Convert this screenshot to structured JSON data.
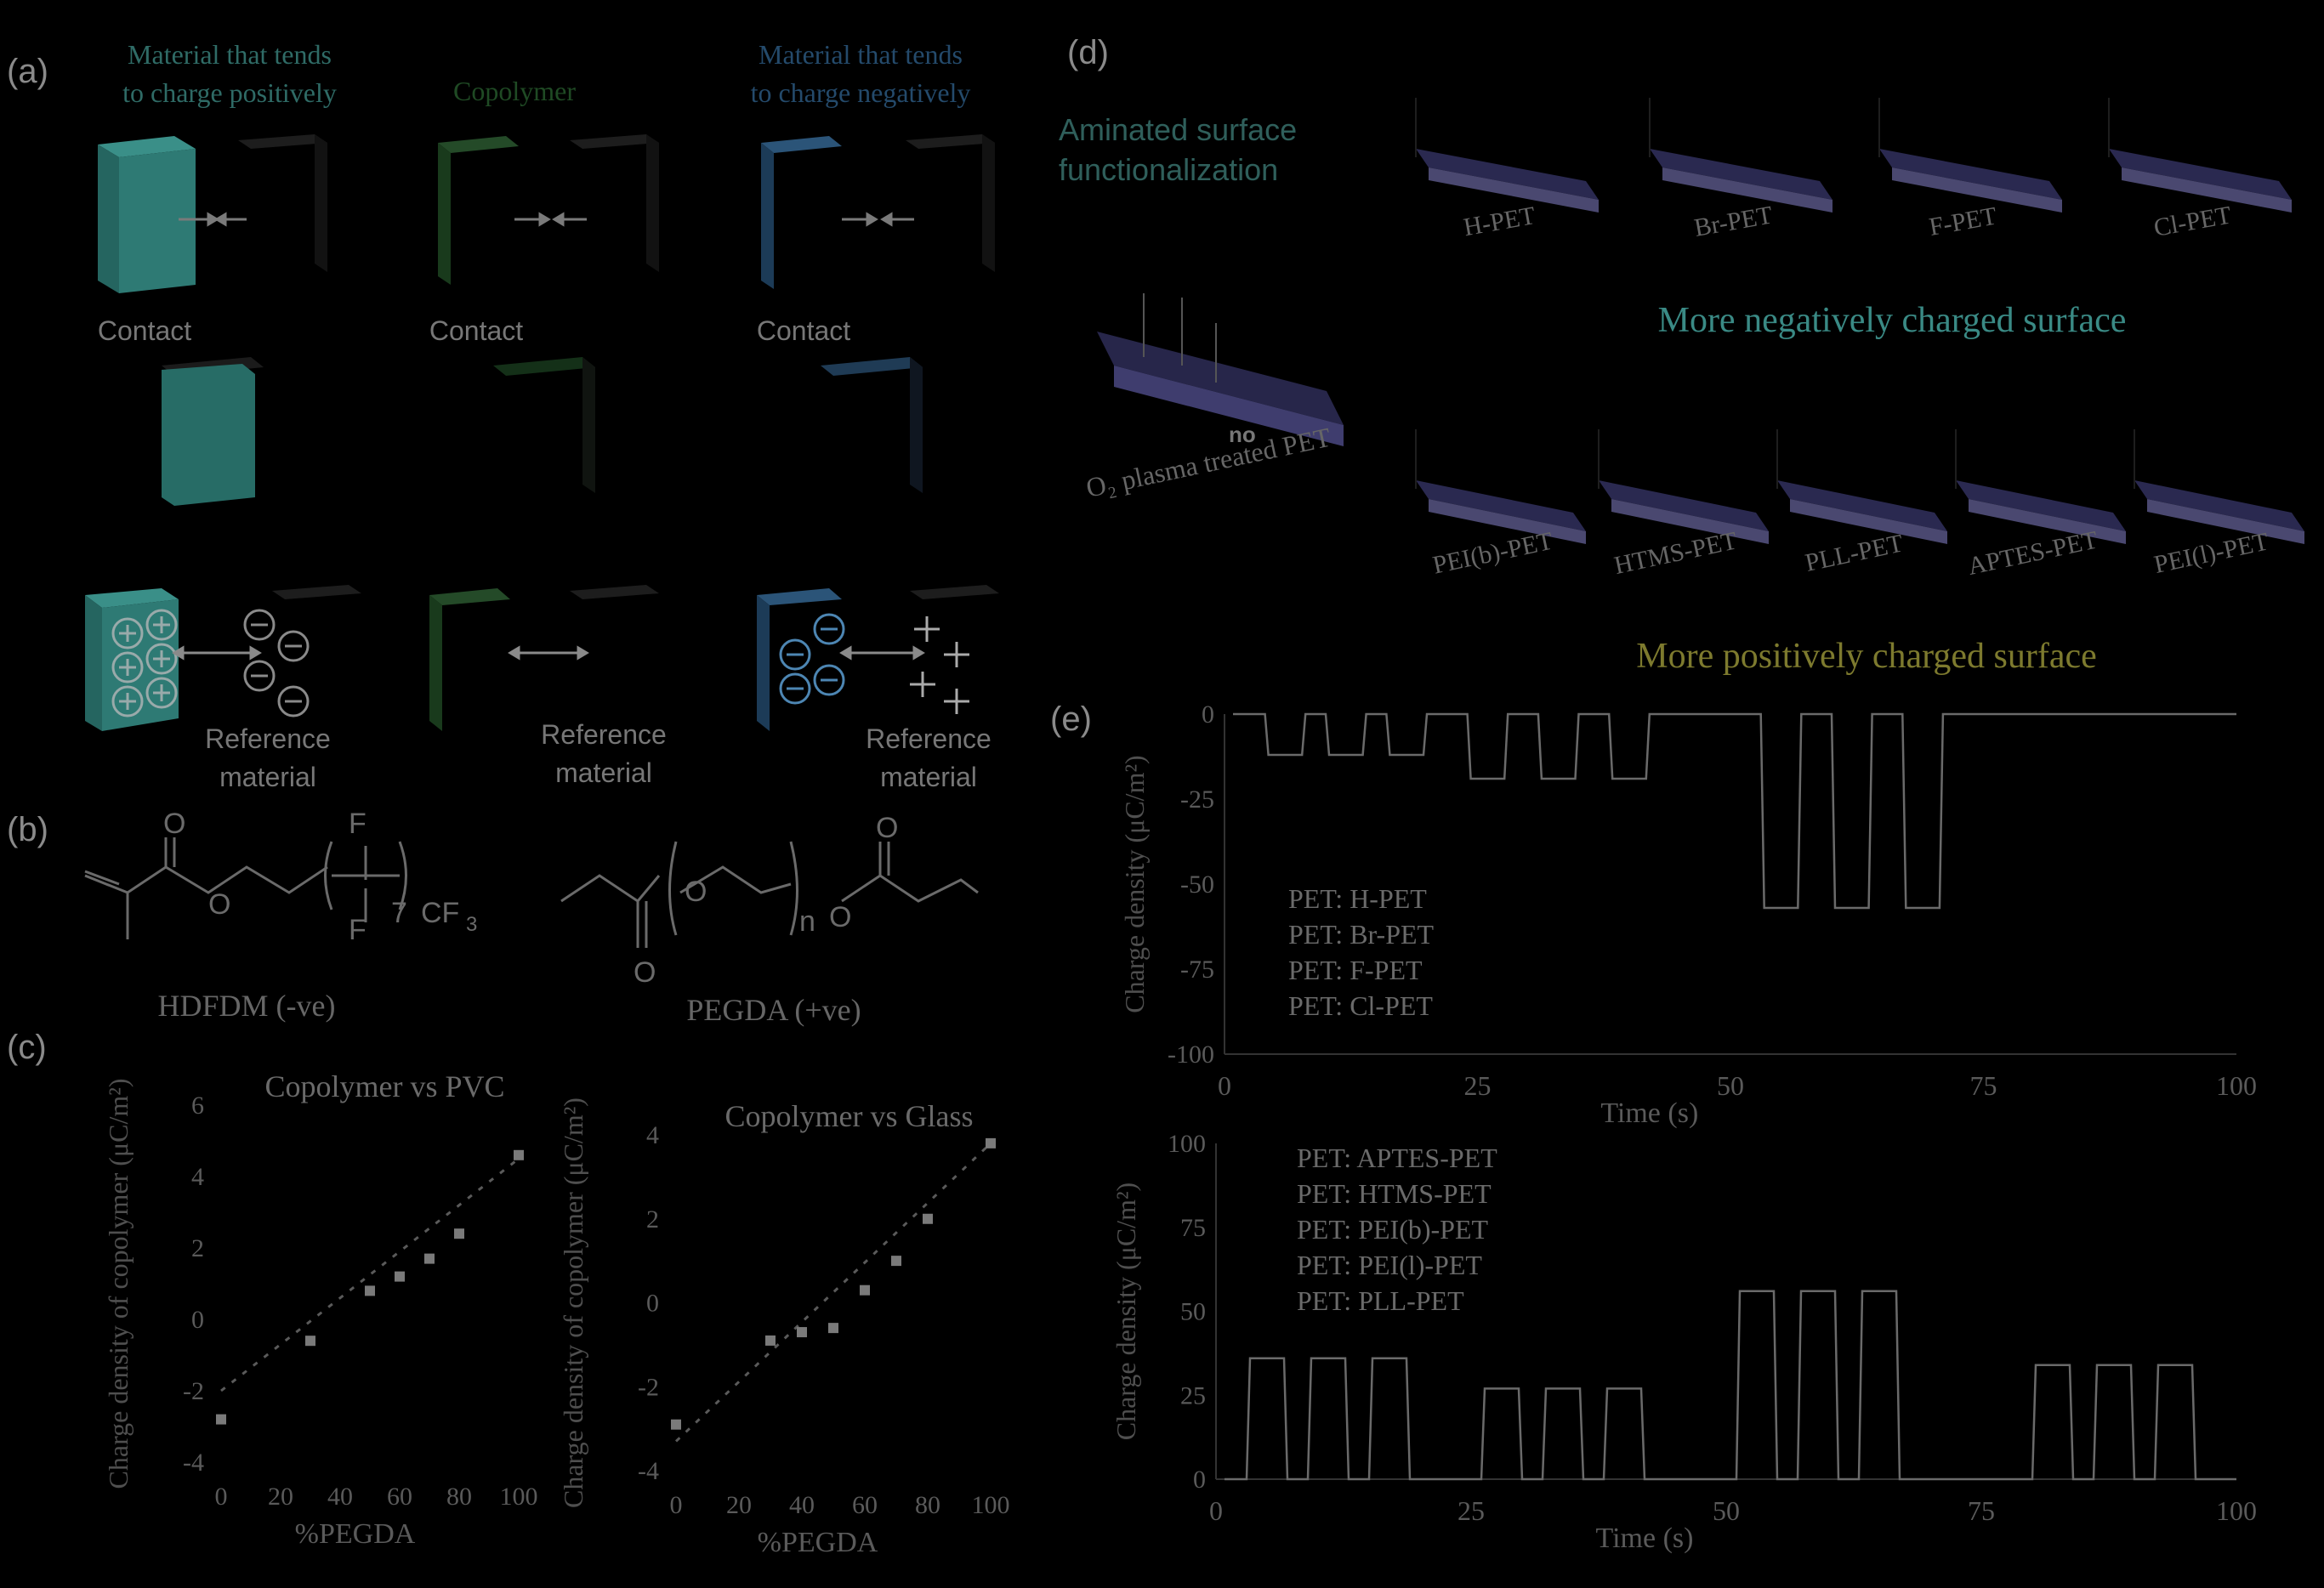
{
  "panels": {
    "a": "(a)",
    "b": "(b)",
    "c": "(c)",
    "d": "(d)",
    "e": "(e)"
  },
  "panel_a": {
    "col1_title_1": "Material that tends",
    "col1_title_2": "to charge positively",
    "col2_title": "Copolymer",
    "col3_title_1": "Material that tends",
    "col3_title_2": "to charge negatively",
    "contact": "Contact",
    "ref_1": "Reference",
    "ref_2": "material",
    "colors": {
      "positive": "#2a6f6a",
      "neutral": "#1f3a22",
      "negative": "#22415e",
      "reference": "#151515"
    }
  },
  "panel_b": {
    "left_name": "HDFDM (-ve)",
    "right_name": "PEGDA (+ve)",
    "atoms": {
      "O": "O",
      "F": "F",
      "n7": "7",
      "CF3": "CF",
      "sub3": "3",
      "n": "n"
    }
  },
  "panel_d": {
    "aminated_1": "Aminated surface",
    "aminated_2": "functionalization",
    "neg_label": "More negatively charged surface",
    "pos_label": "More positively charged surface",
    "center_label": "O₂ plasma treated PET",
    "center_mark": "no",
    "neg_films": [
      "H-PET",
      "Br-PET",
      "F-PET",
      "Cl-PET"
    ],
    "pos_films": [
      "PEI(b)-PET",
      "HTMS-PET",
      "PLL-PET",
      "APTES-PET",
      "PEI(l)-PET"
    ],
    "colors": {
      "teal": "#3a8a85",
      "yellow": "#7d7a2e",
      "film": "#4a4870"
    }
  },
  "chart_data": [
    {
      "type": "scatter",
      "panel": "c-left",
      "title": "Copolymer vs PVC",
      "xlabel": "%PEGDA",
      "ylabel": "Charge density of copolymer (μC/m²)",
      "xlim": [
        0,
        100
      ],
      "ylim": [
        -4,
        6
      ],
      "xticks": [
        "0",
        "20",
        "40",
        "60",
        "80",
        "100"
      ],
      "yticks": [
        "-4",
        "-2",
        "0",
        "2",
        "4",
        "6"
      ],
      "x": [
        0,
        30,
        50,
        60,
        70,
        80,
        100
      ],
      "y": [
        -2.8,
        -0.6,
        0.8,
        1.2,
        1.7,
        2.4,
        4.6
      ],
      "fit": [
        [
          0,
          -2.0
        ],
        [
          100,
          4.5
        ]
      ]
    },
    {
      "type": "scatter",
      "panel": "c-right",
      "title": "Copolymer vs Glass",
      "xlabel": "%PEGDA",
      "ylabel": "Charge density of copolymer (μC/m²)",
      "xlim": [
        0,
        100
      ],
      "ylim": [
        -4,
        4
      ],
      "xticks": [
        "0",
        "20",
        "40",
        "60",
        "80",
        "100"
      ],
      "yticks": [
        "-4",
        "-2",
        "0",
        "2",
        "4"
      ],
      "x": [
        0,
        30,
        40,
        50,
        60,
        70,
        80,
        100
      ],
      "y": [
        -2.9,
        -0.9,
        -0.7,
        -0.6,
        0.3,
        1.0,
        2.0,
        3.8
      ],
      "fit": [
        [
          0,
          -3.3
        ],
        [
          100,
          3.8
        ]
      ]
    },
    {
      "type": "line",
      "panel": "e-top",
      "xlabel": "Time (s)",
      "ylabel": "Charge density (μC/m²)",
      "xlim": [
        0,
        100
      ],
      "ylim": [
        -100,
        0
      ],
      "xticks": [
        "0",
        "25",
        "50",
        "75",
        "100"
      ],
      "yticks": [
        "0",
        "-25",
        "-50",
        "-75",
        "-100"
      ],
      "legend": [
        "PET: H-PET",
        "PET: Br-PET",
        "PET: F-PET",
        "PET: Cl-PET"
      ],
      "pulses": [
        {
          "start": 4,
          "end": 8,
          "value": -12
        },
        {
          "start": 10,
          "end": 14,
          "value": -12
        },
        {
          "start": 16,
          "end": 20,
          "value": -12
        },
        {
          "start": 24,
          "end": 28,
          "value": -19
        },
        {
          "start": 31,
          "end": 35,
          "value": -19
        },
        {
          "start": 38,
          "end": 42,
          "value": -19
        },
        {
          "start": 53,
          "end": 57,
          "value": -57
        },
        {
          "start": 60,
          "end": 64,
          "value": -57
        },
        {
          "start": 67,
          "end": 71,
          "value": -57
        }
      ]
    },
    {
      "type": "line",
      "panel": "e-bottom",
      "xlabel": "Time (s)",
      "ylabel": "Charge density (μC/m²)",
      "xlim": [
        0,
        100
      ],
      "ylim": [
        0,
        100
      ],
      "xticks": [
        "0",
        "25",
        "50",
        "75",
        "100"
      ],
      "yticks": [
        "0",
        "25",
        "50",
        "75",
        "100"
      ],
      "legend": [
        "PET: APTES-PET",
        "PET: HTMS-PET",
        "PET: PEI(b)-PET",
        "PET: PEI(l)-PET",
        "PET: PLL-PET"
      ],
      "pulses": [
        {
          "start": 3,
          "end": 7,
          "value": 36
        },
        {
          "start": 9,
          "end": 13,
          "value": 36
        },
        {
          "start": 15,
          "end": 19,
          "value": 36
        },
        {
          "start": 26,
          "end": 30,
          "value": 27
        },
        {
          "start": 32,
          "end": 36,
          "value": 27
        },
        {
          "start": 38,
          "end": 42,
          "value": 27
        },
        {
          "start": 51,
          "end": 55,
          "value": 56
        },
        {
          "start": 57,
          "end": 61,
          "value": 56
        },
        {
          "start": 63,
          "end": 67,
          "value": 56
        },
        {
          "start": 80,
          "end": 84,
          "value": 34
        },
        {
          "start": 86,
          "end": 90,
          "value": 34
        },
        {
          "start": 92,
          "end": 96,
          "value": 34
        }
      ]
    }
  ]
}
